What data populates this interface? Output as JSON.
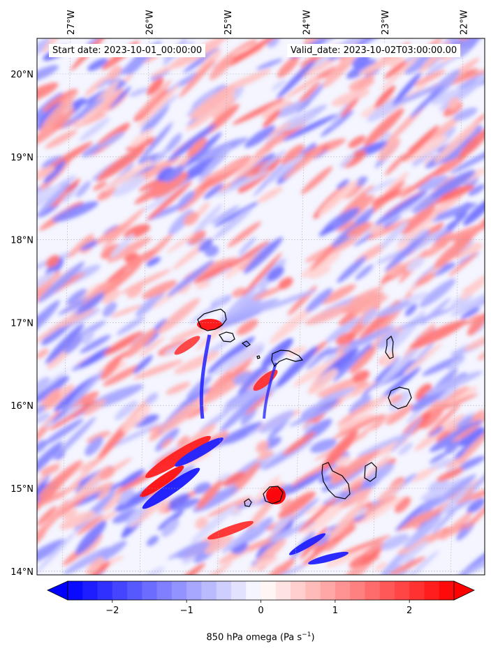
{
  "header": {
    "start_date": "Start date: 2023-10-01_00:00:00",
    "valid_date": "Valid_date: 2023-10-02T03:00:00.00"
  },
  "map": {
    "variable": "850 hPa omega",
    "lon_ticks": [
      "27°W",
      "26°W",
      "25°W",
      "24°W",
      "23°W",
      "22°W"
    ],
    "lat_ticks": [
      "20°N",
      "19°N",
      "18°N",
      "17°N",
      "16°N",
      "15°N",
      "14°N"
    ],
    "lon_values": [
      -27,
      -26,
      -25,
      -24,
      -23,
      -22
    ],
    "lat_values": [
      20,
      19,
      18,
      17,
      16,
      15,
      14
    ],
    "gridlines": true,
    "coastline_color": "#000000"
  },
  "colorbar": {
    "label": "850 hPa omega (Pa s",
    "label_exp": "−1",
    "label_end": ")",
    "ticks": [
      "−2",
      "−1",
      "0",
      "1",
      "2"
    ],
    "tick_values": [
      -2,
      -1,
      0,
      1,
      2
    ],
    "range": [
      -2.6,
      2.6
    ],
    "extend": "both",
    "colormap": "bwr",
    "colors": {
      "negative": "#0000ff",
      "zero": "#ffffff",
      "positive": "#ff0000"
    }
  }
}
